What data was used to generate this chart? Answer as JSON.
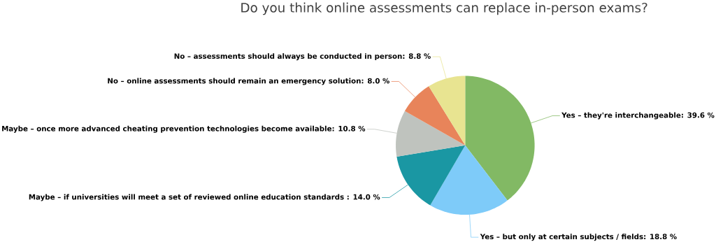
{
  "chart_data": {
    "type": "pie",
    "title": "Do you think online assessments can replace in-person exams?",
    "categories": [
      "Yes – they're interchangeable",
      "Yes – but only at certain subjects / fields",
      "Maybe – if universities will meet a set of reviewed online education standards",
      "Maybe – once more advanced cheating prevention technologies become available",
      "No – online assessments should remain an emergency solution",
      "No – assessments should always be conducted in person"
    ],
    "values": [
      39.6,
      18.8,
      14.0,
      10.8,
      8.0,
      8.8
    ],
    "value_labels": [
      ": 39.6 %",
      ": 18.8 %",
      " : 14.0 %",
      ": 10.8 %",
      ": 8.0 %",
      ": 8.8 %"
    ],
    "colors": [
      "#82b964",
      "#7ecbf9",
      "#1a97a3",
      "#bfc3be",
      "#e8845a",
      "#e8e491"
    ]
  }
}
